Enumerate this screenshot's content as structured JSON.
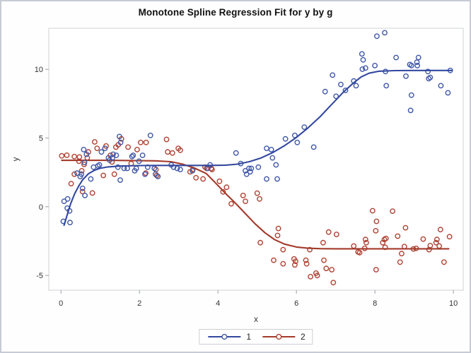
{
  "chart_data": {
    "type": "scatter",
    "title": "Monotone Spline Regression Fit for y by g",
    "xlabel": "x",
    "ylabel": "y",
    "xlim": [
      -0.31,
      10.25
    ],
    "ylim": [
      -6.07,
      12.99
    ],
    "xticks": [
      0,
      2,
      4,
      6,
      8,
      10
    ],
    "yticks": [
      -5,
      0,
      5,
      10
    ],
    "grid": false,
    "legend_position": "bottom-center",
    "wall_border_color": "#cfd1d5",
    "tick_color": "#9aa0a6",
    "series": [
      {
        "name": "1",
        "marker_color": "#3F57A7",
        "line_color": "#33489F",
        "points": [
          [
            0.06,
            -1.06
          ],
          [
            0.16,
            -0.1
          ],
          [
            0.22,
            -0.3
          ],
          [
            0.23,
            -1.15
          ],
          [
            0.08,
            0.4
          ],
          [
            0.17,
            0.57
          ],
          [
            0.41,
            2.45
          ],
          [
            0.49,
            2.2
          ],
          [
            0.52,
            2.37
          ],
          [
            0.55,
            1.34
          ],
          [
            0.58,
            4.16
          ],
          [
            0.6,
            3.22
          ],
          [
            0.61,
            0.82
          ],
          [
            0.65,
            3.82
          ],
          [
            0.76,
            2.02
          ],
          [
            0.83,
            2.88
          ],
          [
            0.94,
            2.97
          ],
          [
            0.98,
            3.05
          ],
          [
            1.03,
            3.99
          ],
          [
            1.12,
            4.25
          ],
          [
            1.21,
            3.56
          ],
          [
            1.24,
            3.39
          ],
          [
            1.31,
            3.56
          ],
          [
            1.33,
            3.82
          ],
          [
            1.41,
            3.74
          ],
          [
            1.45,
            2.88
          ],
          [
            1.49,
            5.11
          ],
          [
            1.51,
            1.94
          ],
          [
            1.52,
            4.68
          ],
          [
            1.61,
            2.79
          ],
          [
            1.69,
            2.79
          ],
          [
            1.81,
            3.65
          ],
          [
            1.84,
            3.74
          ],
          [
            1.88,
            2.62
          ],
          [
            1.92,
            2.79
          ],
          [
            1.99,
            3.31
          ],
          [
            2.08,
            3.74
          ],
          [
            2.14,
            2.37
          ],
          [
            2.21,
            2.88
          ],
          [
            2.28,
            5.19
          ],
          [
            2.38,
            2.79
          ],
          [
            2.41,
            2.37
          ],
          [
            2.47,
            2.2
          ],
          [
            2.81,
            3.05
          ],
          [
            2.87,
            2.88
          ],
          [
            2.96,
            2.79
          ],
          [
            3.04,
            2.71
          ],
          [
            3.35,
            2.62
          ],
          [
            3.74,
            2.79
          ],
          [
            3.8,
            3.05
          ],
          [
            4.46,
            3.91
          ],
          [
            4.58,
            3.14
          ],
          [
            4.7,
            2.62
          ],
          [
            4.73,
            2.37
          ],
          [
            4.79,
            2.79
          ],
          [
            4.82,
            2.54
          ],
          [
            4.85,
            2.79
          ],
          [
            5.03,
            2.88
          ],
          [
            5.24,
            4.25
          ],
          [
            5.24,
            2.02
          ],
          [
            5.36,
            4.16
          ],
          [
            5.39,
            3.56
          ],
          [
            5.48,
            3.05
          ],
          [
            5.51,
            2.02
          ],
          [
            5.72,
            4.94
          ],
          [
            5.96,
            5.19
          ],
          [
            6.02,
            4.68
          ],
          [
            6.2,
            5.79
          ],
          [
            6.44,
            4.34
          ],
          [
            6.73,
            8.38
          ],
          [
            6.92,
            9.58
          ],
          [
            7.01,
            8.04
          ],
          [
            7.13,
            8.9
          ],
          [
            7.25,
            8.47
          ],
          [
            7.46,
            9.15
          ],
          [
            7.52,
            8.81
          ],
          [
            7.67,
            11.12
          ],
          [
            7.7,
            10.69
          ],
          [
            7.68,
            10.01
          ],
          [
            7.76,
            10.09
          ],
          [
            8.0,
            10.27
          ],
          [
            8.05,
            12.41
          ],
          [
            8.25,
            12.66
          ],
          [
            8.27,
            9.84
          ],
          [
            8.29,
            8.81
          ],
          [
            8.54,
            10.86
          ],
          [
            8.79,
            9.5
          ],
          [
            8.89,
            10.35
          ],
          [
            8.93,
            10.27
          ],
          [
            8.91,
            7.01
          ],
          [
            8.93,
            8.12
          ],
          [
            9.07,
            10.52
          ],
          [
            9.08,
            10.27
          ],
          [
            9.11,
            10.86
          ],
          [
            9.35,
            9.84
          ],
          [
            9.37,
            9.32
          ],
          [
            9.41,
            9.41
          ],
          [
            9.68,
            8.81
          ],
          [
            9.86,
            8.29
          ],
          [
            9.92,
            9.92
          ]
        ],
        "fit_line": [
          [
            0.08,
            -1.35
          ],
          [
            0.12,
            -0.95
          ],
          [
            0.18,
            -0.4
          ],
          [
            0.25,
            0.25
          ],
          [
            0.35,
            0.95
          ],
          [
            0.45,
            1.5
          ],
          [
            0.55,
            1.95
          ],
          [
            0.7,
            2.4
          ],
          [
            0.85,
            2.65
          ],
          [
            1.0,
            2.8
          ],
          [
            1.2,
            2.9
          ],
          [
            1.5,
            2.96
          ],
          [
            2.0,
            3.0
          ],
          [
            2.6,
            3.01
          ],
          [
            3.2,
            3.01
          ],
          [
            3.8,
            3.01
          ],
          [
            4.2,
            3.03
          ],
          [
            4.5,
            3.1
          ],
          [
            4.8,
            3.28
          ],
          [
            5.1,
            3.55
          ],
          [
            5.4,
            3.95
          ],
          [
            5.7,
            4.45
          ],
          [
            6.0,
            5.05
          ],
          [
            6.3,
            5.75
          ],
          [
            6.6,
            6.55
          ],
          [
            6.9,
            7.45
          ],
          [
            7.2,
            8.35
          ],
          [
            7.45,
            9.0
          ],
          [
            7.65,
            9.45
          ],
          [
            7.85,
            9.72
          ],
          [
            8.1,
            9.86
          ],
          [
            8.5,
            9.91
          ],
          [
            9.0,
            9.92
          ],
          [
            9.95,
            9.92
          ]
        ]
      },
      {
        "name": "2",
        "marker_color": "#AE4132",
        "line_color": "#A33A2B",
        "points": [
          [
            0.02,
            3.7
          ],
          [
            0.15,
            3.75
          ],
          [
            0.34,
            3.65
          ],
          [
            0.46,
            3.31
          ],
          [
            0.47,
            3.62
          ],
          [
            0.59,
            3.08
          ],
          [
            0.67,
            3.56
          ],
          [
            0.7,
            3.99
          ],
          [
            0.86,
            4.72
          ],
          [
            0.92,
            4.25
          ],
          [
            1.08,
            2.28
          ],
          [
            1.15,
            4.42
          ],
          [
            1.26,
            3.74
          ],
          [
            1.3,
            3.26
          ],
          [
            1.36,
            2.37
          ],
          [
            1.4,
            4.34
          ],
          [
            1.46,
            4.51
          ],
          [
            1.54,
            4.94
          ],
          [
            1.71,
            4.34
          ],
          [
            1.79,
            3.14
          ],
          [
            1.94,
            4.16
          ],
          [
            2.03,
            4.68
          ],
          [
            2.17,
            4.68
          ],
          [
            2.16,
            2.45
          ],
          [
            2.42,
            2.71
          ],
          [
            2.44,
            2.28
          ],
          [
            2.69,
            4.9
          ],
          [
            2.72,
            3.99
          ],
          [
            2.84,
            3.91
          ],
          [
            2.99,
            4.25
          ],
          [
            3.04,
            4.11
          ],
          [
            0.26,
            1.68
          ],
          [
            0.34,
            2.37
          ],
          [
            0.53,
            2.62
          ],
          [
            0.55,
            1.1
          ],
          [
            0.8,
            1.0
          ],
          [
            3.29,
            2.54
          ],
          [
            3.36,
            2.71
          ],
          [
            3.44,
            2.11
          ],
          [
            3.62,
            2.02
          ],
          [
            3.67,
            2.88
          ],
          [
            3.71,
            2.79
          ],
          [
            3.83,
            2.79
          ],
          [
            3.85,
            2.71
          ],
          [
            4.04,
            1.85
          ],
          [
            4.13,
            1.08
          ],
          [
            4.22,
            1.42
          ],
          [
            4.34,
            0.22
          ],
          [
            4.64,
            0.82
          ],
          [
            4.7,
            0.4
          ],
          [
            5.0,
            0.99
          ],
          [
            5.06,
            0.57
          ],
          [
            5.08,
            -2.61
          ],
          [
            5.42,
            -3.89
          ],
          [
            5.52,
            -2.09
          ],
          [
            5.54,
            -1.58
          ],
          [
            5.66,
            -3.12
          ],
          [
            5.66,
            -4.15
          ],
          [
            5.94,
            -3.8
          ],
          [
            5.96,
            -4.23
          ],
          [
            5.98,
            -3.97
          ],
          [
            6.24,
            -3.89
          ],
          [
            6.26,
            -4.15
          ],
          [
            6.34,
            -3.12
          ],
          [
            6.36,
            -5.09
          ],
          [
            6.5,
            -4.83
          ],
          [
            6.53,
            -5.0
          ],
          [
            6.68,
            -2.61
          ],
          [
            6.7,
            -3.89
          ],
          [
            6.76,
            -4.49
          ],
          [
            6.82,
            -1.84
          ],
          [
            6.9,
            -4.58
          ],
          [
            6.94,
            -5.52
          ],
          [
            7.02,
            -2.01
          ],
          [
            7.46,
            -2.86
          ],
          [
            7.57,
            -3.29
          ],
          [
            7.61,
            -3.34
          ],
          [
            7.76,
            -2.38
          ],
          [
            7.78,
            -2.61
          ],
          [
            7.74,
            -3.03
          ],
          [
            7.94,
            -0.29
          ],
          [
            8.02,
            -1.75
          ],
          [
            8.03,
            -4.58
          ],
          [
            8.04,
            -1.06
          ],
          [
            8.2,
            -2.61
          ],
          [
            8.24,
            -2.38
          ],
          [
            8.28,
            -2.31
          ],
          [
            8.26,
            -2.95
          ],
          [
            8.45,
            -0.32
          ],
          [
            8.58,
            -2.14
          ],
          [
            8.64,
            -4.03
          ],
          [
            8.68,
            -3.41
          ],
          [
            8.75,
            -2.9
          ],
          [
            8.78,
            -1.53
          ],
          [
            8.98,
            -3.07
          ],
          [
            9.05,
            -3.03
          ],
          [
            9.23,
            -2.35
          ],
          [
            9.38,
            -3.12
          ],
          [
            9.41,
            -2.83
          ],
          [
            9.56,
            -2.61
          ],
          [
            9.58,
            -2.38
          ],
          [
            9.64,
            -2.86
          ],
          [
            9.67,
            -1.66
          ],
          [
            9.76,
            -4.03
          ],
          [
            9.9,
            -2.18
          ]
        ],
        "fit_line": [
          [
            0.02,
            3.38
          ],
          [
            0.6,
            3.38
          ],
          [
            1.2,
            3.38
          ],
          [
            1.8,
            3.36
          ],
          [
            2.4,
            3.34
          ],
          [
            2.8,
            3.28
          ],
          [
            3.1,
            3.1
          ],
          [
            3.4,
            2.82
          ],
          [
            3.7,
            2.42
          ],
          [
            3.95,
            1.7
          ],
          [
            4.2,
            0.95
          ],
          [
            4.45,
            0.25
          ],
          [
            4.7,
            -0.5
          ],
          [
            4.95,
            -1.25
          ],
          [
            5.2,
            -1.9
          ],
          [
            5.45,
            -2.4
          ],
          [
            5.7,
            -2.72
          ],
          [
            6.0,
            -2.93
          ],
          [
            6.3,
            -3.02
          ],
          [
            6.6,
            -3.05
          ],
          [
            7.0,
            -3.06
          ],
          [
            8.5,
            -3.06
          ],
          [
            9.88,
            -3.06
          ]
        ]
      }
    ]
  }
}
